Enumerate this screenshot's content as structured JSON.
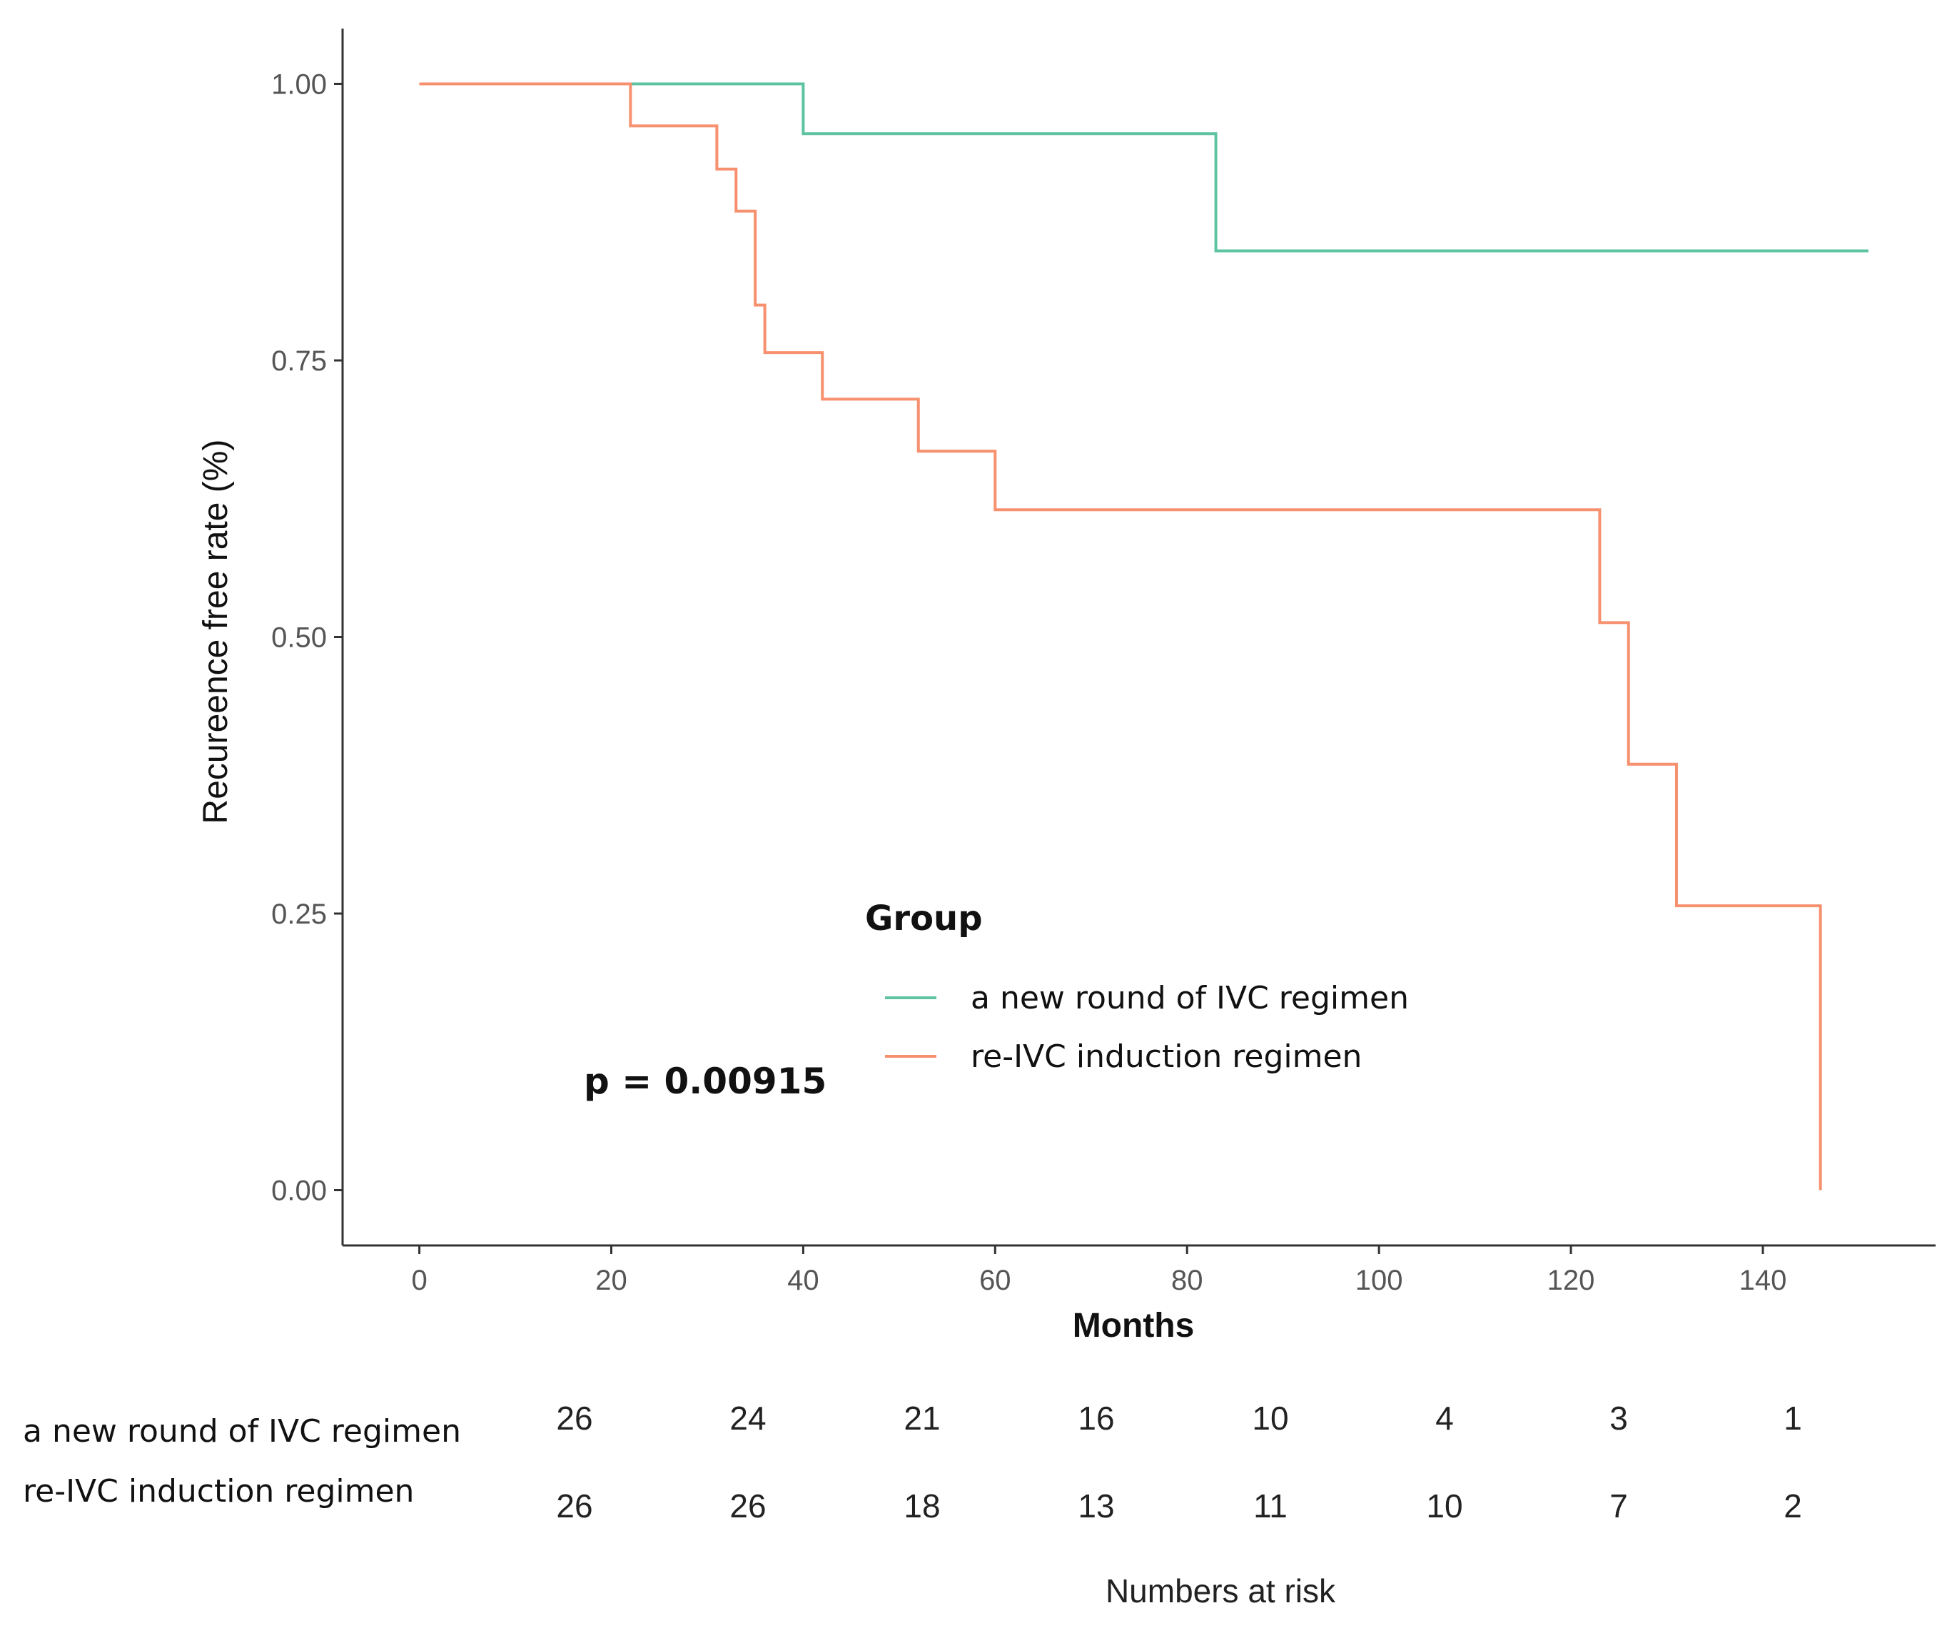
{
  "chart_data": {
    "type": "line",
    "subtype": "kaplan-meier-step",
    "title": "",
    "xlabel": "Months",
    "ylabel": "Recureence free rate (%)",
    "xlim": [
      -8,
      158
    ],
    "ylim": [
      -0.05,
      1.05
    ],
    "x_ticks": [
      0,
      20,
      40,
      60,
      80,
      100,
      120,
      140
    ],
    "x_tick_labels": [
      "0",
      "20",
      "40",
      "60",
      "80",
      "100",
      "120",
      "140"
    ],
    "y_ticks": [
      0,
      0.25,
      0.5,
      0.75,
      1.0
    ],
    "y_tick_labels": [
      "0.00",
      "0.25",
      "0.50",
      "0.75",
      "1.00"
    ],
    "grid": false,
    "legend": {
      "title": "Group",
      "position": "center"
    },
    "annotation": "p = 0.00915",
    "series": [
      {
        "name": "a new round of IVC regimen",
        "color": "#5DC3A0",
        "steps": [
          [
            0,
            1.0
          ],
          [
            40,
            0.955
          ],
          [
            83,
            0.849
          ]
        ],
        "end_x": 151
      },
      {
        "name": "re-IVC induction regimen",
        "color": "#F7906E",
        "steps": [
          [
            0,
            1.0
          ],
          [
            22,
            0.962
          ],
          [
            31,
            0.923
          ],
          [
            33,
            0.885
          ],
          [
            35,
            0.8
          ],
          [
            36,
            0.757
          ],
          [
            42,
            0.715
          ],
          [
            52,
            0.668
          ],
          [
            60,
            0.615
          ],
          [
            123,
            0.513
          ],
          [
            126,
            0.385
          ],
          [
            131,
            0.257
          ],
          [
            146,
            0.0
          ]
        ],
        "end_x": 146
      }
    ]
  },
  "risk_table": {
    "title": "Numbers at risk",
    "rows": [
      {
        "label": "a new round of IVC regimen",
        "values": [
          "26",
          "24",
          "21",
          "16",
          "10",
          "4",
          "3",
          "1"
        ]
      },
      {
        "label": "re-IVC induction regimen",
        "values": [
          "26",
          "26",
          "18",
          "13",
          "11",
          "10",
          "7",
          "2"
        ]
      }
    ]
  }
}
